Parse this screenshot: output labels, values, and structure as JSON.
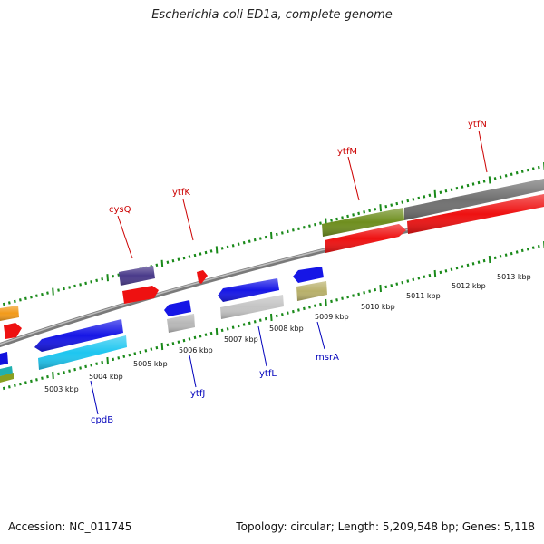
{
  "header": {
    "title": "Escherichia coli ED1a, complete genome"
  },
  "footer": {
    "accession": "Accession: NC_011745",
    "summary": "Topology: circular; Length: 5,209,548 bp; Genes: 5,118"
  },
  "scale_labels": [
    "5003 kbp",
    "5004 kbp",
    "5005 kbp",
    "5006 kbp",
    "5007 kbp",
    "5008 kbp",
    "5009 kbp",
    "5010 kbp",
    "5011 kbp",
    "5012 kbp",
    "5013 kbp"
  ],
  "gene_labels": {
    "forward": [
      "cysQ",
      "ytfK",
      "ytfM",
      "ytfN"
    ],
    "reverse": [
      "cpdB",
      "ytfJ",
      "ytfL",
      "msrA"
    ]
  },
  "colors": {
    "forward_label": "#cc0000",
    "reverse_label": "#0000bb",
    "tick": "#1a8a1a",
    "backbone": "#888888"
  }
}
